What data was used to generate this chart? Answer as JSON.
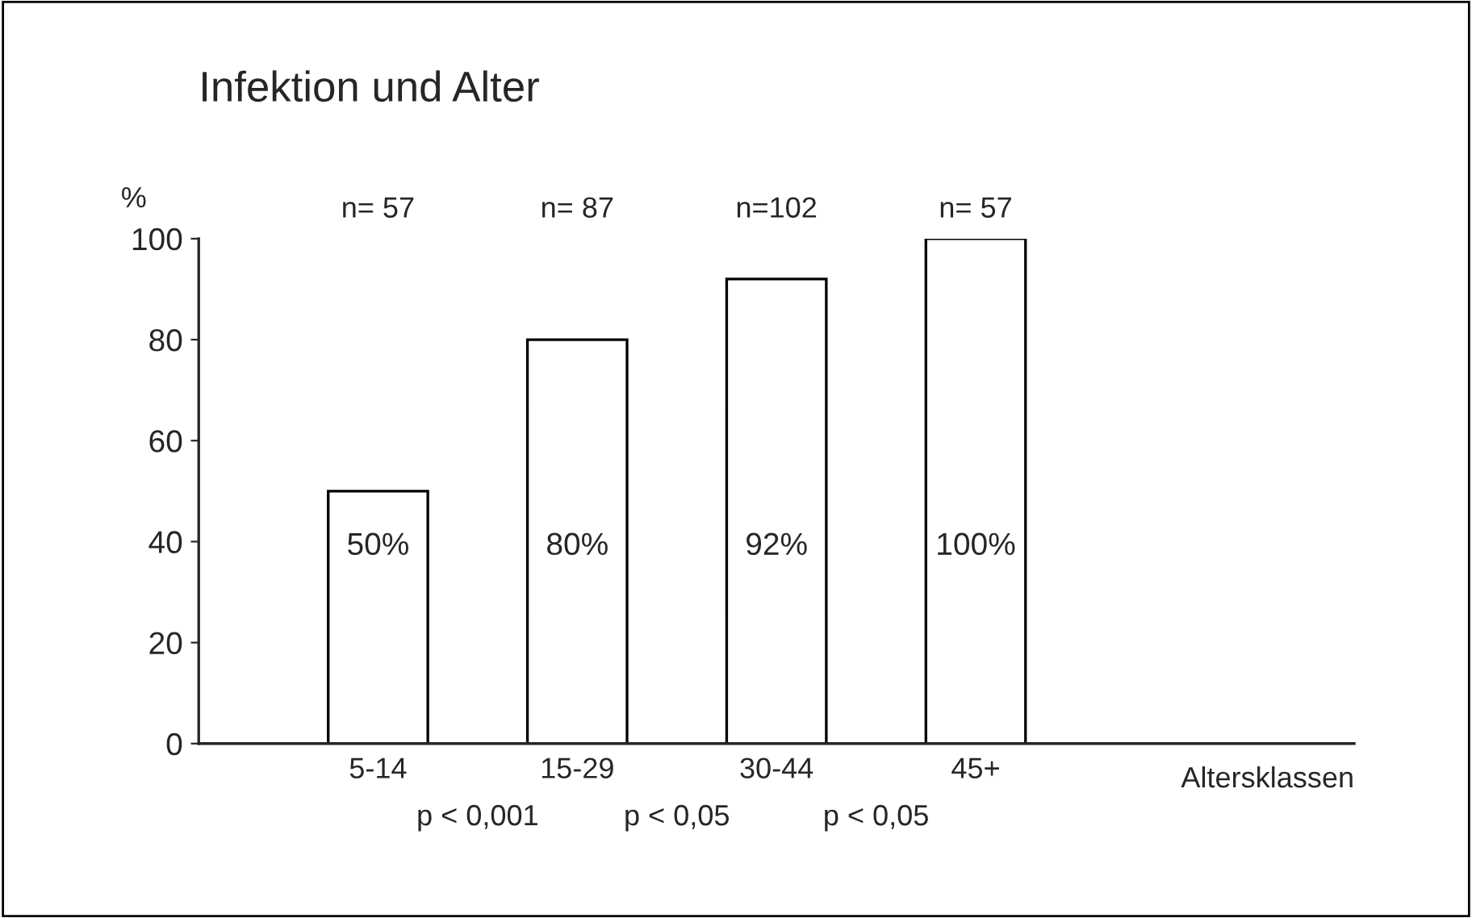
{
  "chart_data": {
    "type": "bar",
    "title": "Infektion und Alter",
    "ylabel": "%",
    "xlabel": "Altersklassen",
    "categories": [
      "5-14",
      "15-29",
      "30-44",
      "45+"
    ],
    "values": [
      50,
      80,
      92,
      100
    ],
    "color": "#ffffff",
    "value_labels": [
      "50%",
      "80%",
      "92%",
      "100%"
    ],
    "ylim": [
      0,
      100
    ],
    "yticks": [
      0,
      20,
      40,
      60,
      80,
      100
    ],
    "grid": false,
    "annotations": [
      "n= 57",
      "n= 87",
      "n=102",
      "n= 57",
      "p < 0,001",
      "p < 0,05",
      "p < 0,05"
    ]
  }
}
